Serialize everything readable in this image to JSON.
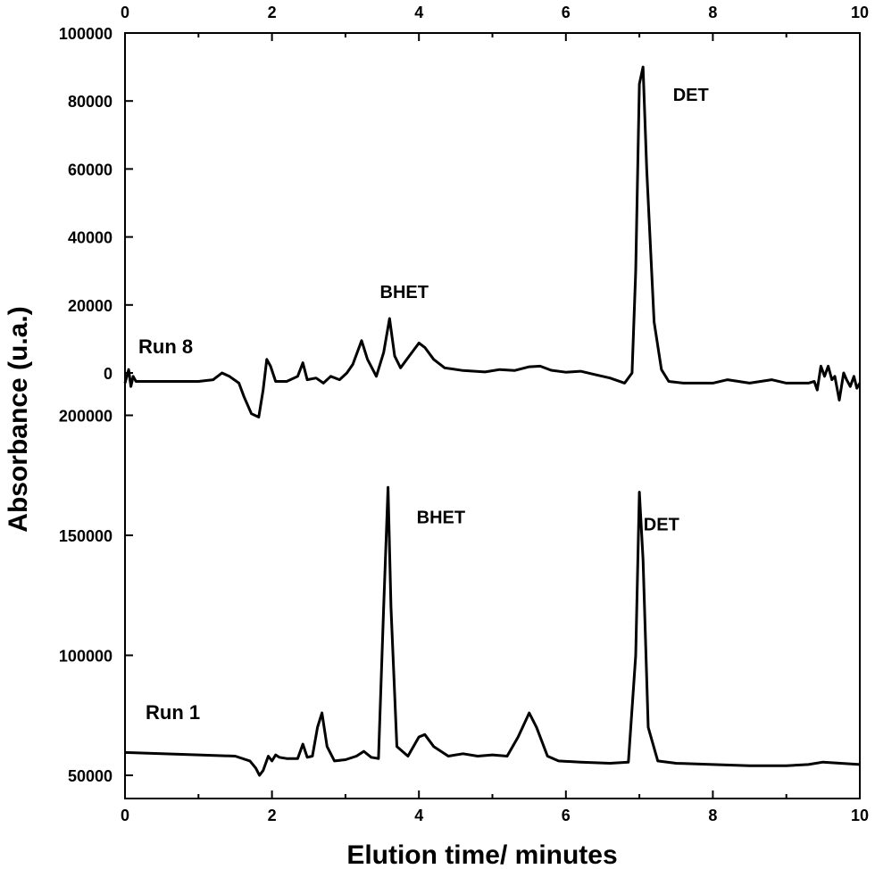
{
  "chart_data": {
    "type": "line",
    "xlabel": "Elution time/ minutes",
    "ylabel": "Absorbance (u.a.)",
    "xlim": [
      0,
      10
    ],
    "x_ticks": [
      0,
      2,
      4,
      6,
      8,
      10
    ],
    "x_tick_labels": [
      "0",
      "2",
      "4",
      "6",
      "8",
      "10"
    ],
    "top_x_ticks": [
      0,
      2,
      4,
      6,
      8,
      10
    ],
    "top_x_tick_labels": [
      "0",
      "2",
      "4",
      "6",
      "8",
      "10"
    ],
    "grid": false,
    "panels": [
      {
        "name": "Run 8",
        "label": "Run 8",
        "ylim": [
          -13000,
          100000
        ],
        "y_ticks": [
          0,
          20000,
          40000,
          60000,
          80000,
          100000
        ],
        "y_tick_labels": [
          "0",
          "20000",
          "40000",
          "60000",
          "80000",
          "100000"
        ],
        "annotations": [
          {
            "text": "BHET",
            "x": 3.8,
            "y": 22000
          },
          {
            "text": "DET",
            "x": 7.7,
            "y": 80000
          }
        ],
        "x": [
          0.0,
          0.05,
          0.08,
          0.11,
          0.15,
          0.5,
          1.0,
          1.2,
          1.32,
          1.42,
          1.55,
          1.62,
          1.72,
          1.82,
          1.88,
          1.93,
          1.98,
          2.05,
          2.2,
          2.35,
          2.42,
          2.48,
          2.6,
          2.7,
          2.8,
          2.92,
          3.02,
          3.1,
          3.22,
          3.3,
          3.42,
          3.52,
          3.6,
          3.67,
          3.75,
          3.87,
          4.0,
          4.08,
          4.2,
          4.35,
          4.6,
          4.9,
          5.1,
          5.3,
          5.5,
          5.65,
          5.8,
          6.0,
          6.2,
          6.4,
          6.6,
          6.8,
          6.9,
          6.95,
          7.0,
          7.05,
          7.1,
          7.2,
          7.3,
          7.4,
          7.6,
          8.0,
          8.2,
          8.5,
          8.8,
          9.0,
          9.3,
          9.38,
          9.42,
          9.47,
          9.52,
          9.57,
          9.62,
          9.66,
          9.72,
          9.78,
          9.82,
          9.87,
          9.92,
          9.96,
          10.0
        ],
        "y": [
          -3000,
          1000,
          -4000,
          -1000,
          -2500,
          -2500,
          -2500,
          -2000,
          0,
          -1000,
          -3000,
          -7000,
          -12000,
          -13000,
          -5000,
          4000,
          2000,
          -2500,
          -2500,
          -1000,
          3000,
          -2000,
          -1500,
          -3000,
          -1000,
          -2000,
          0,
          2500,
          9500,
          4000,
          -1000,
          6000,
          16000,
          5000,
          1500,
          5000,
          8800,
          7500,
          4000,
          1500,
          700,
          300,
          1000,
          700,
          1800,
          2000,
          800,
          200,
          500,
          -500,
          -1500,
          -3000,
          0,
          30000,
          85000,
          90000,
          60000,
          15000,
          1000,
          -2500,
          -3000,
          -3000,
          -2000,
          -3000,
          -2000,
          -3000,
          -3000,
          -2500,
          -5000,
          2000,
          -1000,
          2000,
          -2000,
          -1000,
          -8000,
          0,
          -2000,
          -4000,
          -1000,
          -4500,
          -3000
        ]
      },
      {
        "name": "Run 1",
        "label": "Run 1",
        "ylim": [
          42000,
          200000
        ],
        "y_ticks": [
          50000,
          100000,
          150000,
          200000
        ],
        "y_tick_labels": [
          "50000",
          "100000",
          "150000",
          "200000"
        ],
        "annotations": [
          {
            "text": "BHET",
            "x": 4.3,
            "y": 155000
          },
          {
            "text": "DET",
            "x": 7.3,
            "y": 152000
          }
        ],
        "x": [
          0.0,
          0.5,
          1.0,
          1.5,
          1.7,
          1.78,
          1.83,
          1.88,
          1.95,
          2.0,
          2.05,
          2.1,
          2.2,
          2.35,
          2.42,
          2.48,
          2.55,
          2.62,
          2.68,
          2.75,
          2.85,
          3.0,
          3.15,
          3.25,
          3.35,
          3.45,
          3.52,
          3.58,
          3.62,
          3.7,
          3.85,
          4.0,
          4.08,
          4.2,
          4.4,
          4.6,
          4.8,
          5.0,
          5.2,
          5.35,
          5.5,
          5.6,
          5.75,
          5.9,
          6.2,
          6.6,
          6.85,
          6.95,
          7.0,
          7.05,
          7.12,
          7.25,
          7.5,
          8.0,
          8.5,
          9.0,
          9.3,
          9.5,
          10.0
        ],
        "y": [
          59500,
          59000,
          58500,
          58000,
          56000,
          53000,
          50000,
          52000,
          58000,
          56000,
          58500,
          57500,
          57000,
          57000,
          63000,
          57500,
          58000,
          70000,
          76000,
          62000,
          56000,
          56500,
          58000,
          60000,
          57500,
          57000,
          120000,
          170000,
          120000,
          62000,
          58000,
          66000,
          67000,
          62000,
          58000,
          59000,
          58000,
          58500,
          58000,
          66000,
          76000,
          70000,
          58000,
          56000,
          55500,
          55000,
          55500,
          100000,
          168000,
          140000,
          70000,
          56000,
          55000,
          54500,
          54000,
          54000,
          54500,
          55500,
          54500
        ]
      }
    ]
  }
}
